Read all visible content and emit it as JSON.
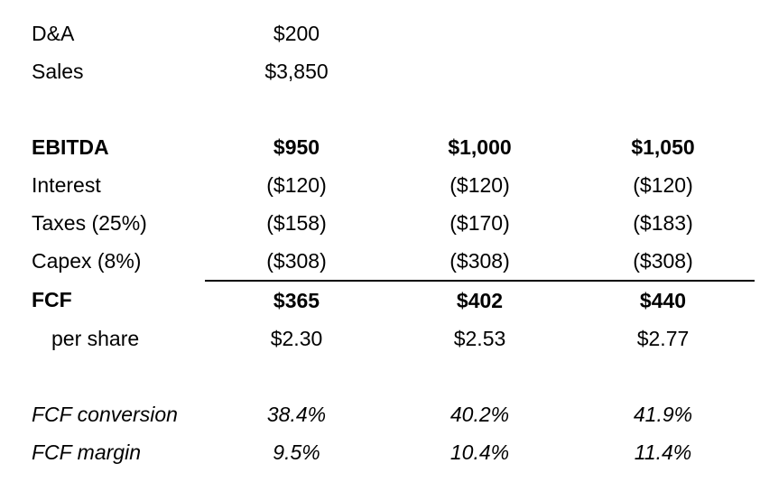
{
  "table": {
    "columns": [
      "label",
      "scenario_low",
      "scenario_mid",
      "scenario_high"
    ],
    "rule_color": "#000000",
    "text_color": "#000000",
    "background_color": "#ffffff",
    "rows": [
      {
        "label": "D&A",
        "values": [
          "$200",
          "",
          ""
        ],
        "style": "normal"
      },
      {
        "label": "Sales",
        "values": [
          "$3,850",
          "",
          ""
        ],
        "style": "normal"
      },
      {
        "label": "",
        "values": [
          "",
          "",
          ""
        ],
        "style": "spacer"
      },
      {
        "label": "EBITDA",
        "values": [
          "$950",
          "$1,000",
          "$1,050"
        ],
        "style": "bold"
      },
      {
        "label": "Interest",
        "values": [
          "($120)",
          "($120)",
          "($120)"
        ],
        "style": "normal"
      },
      {
        "label": "Taxes (25%)",
        "values": [
          "($158)",
          "($170)",
          "($183)"
        ],
        "style": "normal"
      },
      {
        "label": "Capex (8%)",
        "values": [
          "($308)",
          "($308)",
          "($308)"
        ],
        "style": "normal"
      },
      {
        "label": "FCF",
        "values": [
          "$365",
          "$402",
          "$440"
        ],
        "style": "bold",
        "topline": true
      },
      {
        "label": "per share",
        "values": [
          "$2.30",
          "$2.53",
          "$2.77"
        ],
        "style": "indent"
      },
      {
        "label": "",
        "values": [
          "",
          "",
          ""
        ],
        "style": "spacer"
      },
      {
        "label": "FCF conversion",
        "values": [
          "38.4%",
          "40.2%",
          "41.9%"
        ],
        "style": "italic"
      },
      {
        "label": "FCF margin",
        "values": [
          "9.5%",
          "10.4%",
          "11.4%"
        ],
        "style": "italic"
      }
    ]
  }
}
